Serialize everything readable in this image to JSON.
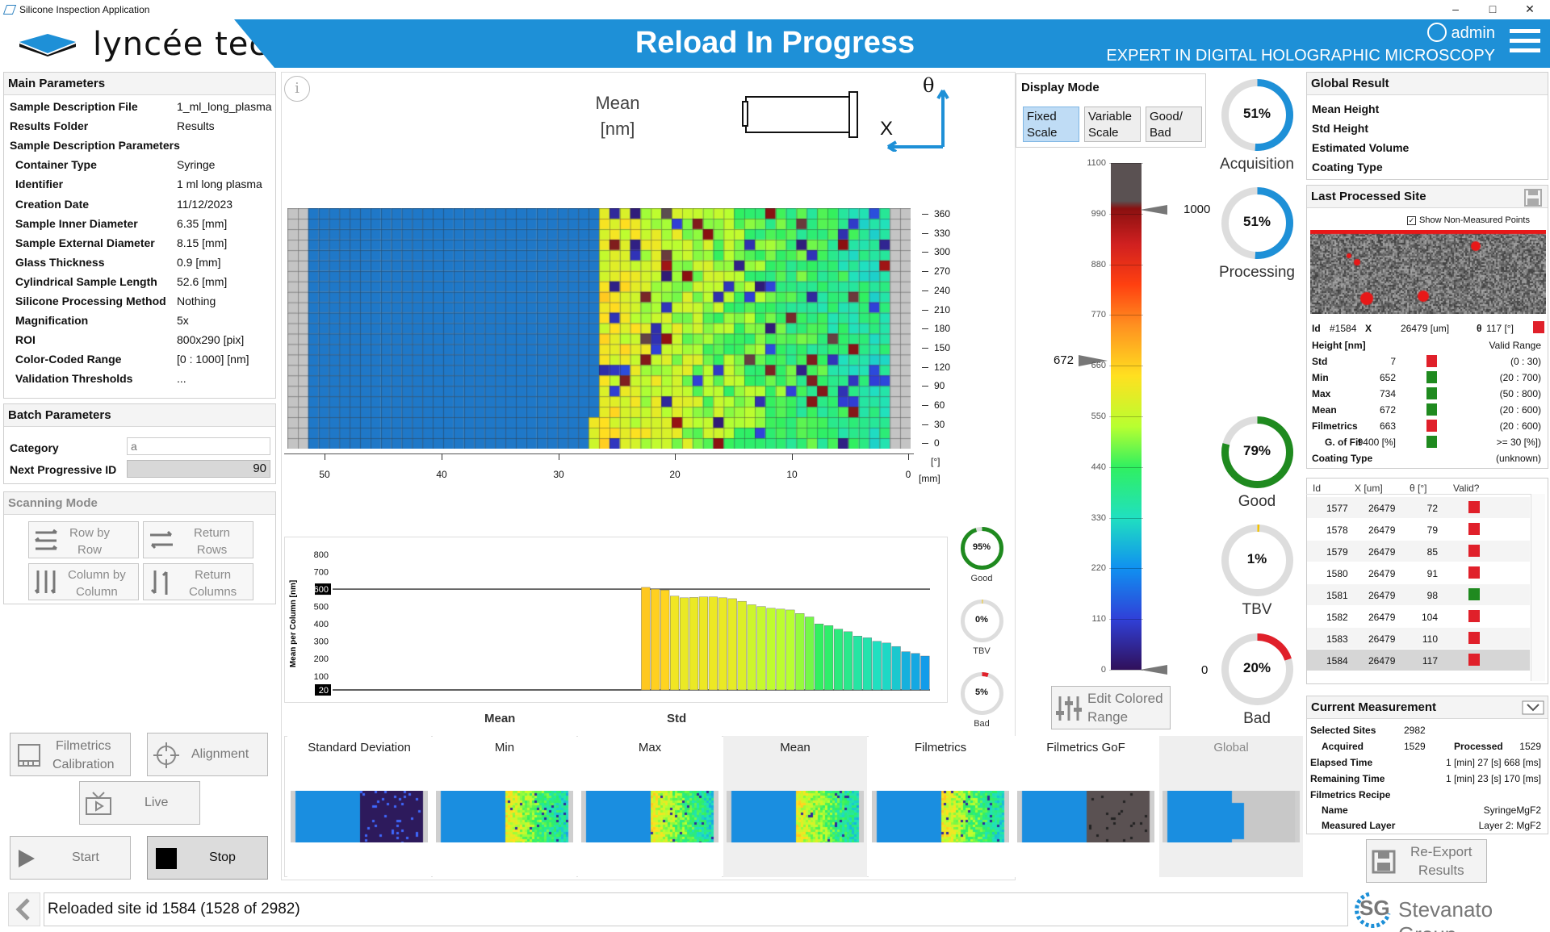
{
  "window": {
    "title": "Silicone Inspection Application",
    "min": "–",
    "max": "□",
    "close": "✕"
  },
  "header": {
    "logo": "lyncée tec",
    "title": "Reload In Progress",
    "subtitle": "EXPERT IN DIGITAL HOLOGRAPHIC MICROSCOPY",
    "user": "admin"
  },
  "main_params": {
    "title": "Main Parameters",
    "rows": [
      {
        "k": "Sample Description File",
        "v": "1_ml_long_plasma",
        "indent": false
      },
      {
        "k": "Results Folder",
        "v": "Results",
        "indent": false
      },
      {
        "k": "Sample Description Parameters",
        "v": "",
        "indent": false
      },
      {
        "k": "Container Type",
        "v": "Syringe",
        "indent": true
      },
      {
        "k": "Identifier",
        "v": "1 ml long plasma",
        "indent": true
      },
      {
        "k": "Creation Date",
        "v": "11/12/2023",
        "indent": true
      },
      {
        "k": "Sample Inner Diameter",
        "v": "6.35 [mm]",
        "indent": true
      },
      {
        "k": "Sample External Diameter",
        "v": "8.15 [mm]",
        "indent": true
      },
      {
        "k": "Glass Thickness",
        "v": "0.9 [mm]",
        "indent": true
      },
      {
        "k": "Cylindrical Sample Length",
        "v": "52.6 [mm]",
        "indent": true
      },
      {
        "k": "Silicone Processing Method",
        "v": "Nothing",
        "indent": true
      },
      {
        "k": "Magnification",
        "v": "5x",
        "indent": true
      },
      {
        "k": "ROI",
        "v": "800x290 [pix]",
        "indent": true
      },
      {
        "k": "Color-Coded Range",
        "v": "[0 : 1000] [nm]",
        "indent": true
      },
      {
        "k": "Validation Thresholds",
        "v": "...",
        "indent": true
      }
    ]
  },
  "batch": {
    "title": "Batch Parameters",
    "category_label": "Category",
    "category_placeholder": "a",
    "next_id_label": "Next Progressive ID",
    "next_id": "90"
  },
  "scanning": {
    "title": "Scanning Mode",
    "row_by_row": "Row by\nRow",
    "return_rows": "Return\nRows",
    "col_by_col": "Column by\nColumn",
    "return_cols": "Return\nColumns"
  },
  "left_buttons": {
    "filmetrics": "Filmetrics\nCalibration",
    "alignment": "Alignment",
    "live": "Live",
    "start": "Start",
    "stop": "Stop"
  },
  "heatmap": {
    "title_line1": "Mean",
    "title_line2": "[nm]",
    "theta": "θ",
    "x": "X",
    "x_ticks": [
      "50",
      "40",
      "30",
      "20",
      "10",
      "0"
    ],
    "x_unit": "[mm]",
    "y_ticks": [
      "360",
      "330",
      "300",
      "270",
      "240",
      "210",
      "180",
      "150",
      "120",
      "90",
      "60",
      "30",
      "0"
    ],
    "y_unit": "[°]"
  },
  "display_mode": {
    "title": "Display Mode",
    "fixed": "Fixed\nScale",
    "variable": "Variable\nScale",
    "goodbad": "Good/\nBad"
  },
  "colorbar": {
    "ticks": [
      "1100",
      "990",
      "880",
      "770",
      "660",
      "550",
      "440",
      "330",
      "220",
      "110",
      "0"
    ],
    "upper": "1000",
    "mean_marker": "672",
    "lower": "0",
    "edit": "Edit Colored\nRange"
  },
  "donuts": [
    {
      "label": "Acquisition",
      "pct": "51%",
      "value": 51,
      "color": "#1e90d7"
    },
    {
      "label": "Processing",
      "pct": "51%",
      "value": 51,
      "color": "#1e90d7"
    },
    {
      "label": "Good",
      "pct": "79%",
      "value": 79,
      "color": "#1f8a1f"
    },
    {
      "label": "TBV",
      "pct": "1%",
      "value": 1,
      "color": "#f2c200"
    },
    {
      "label": "Bad",
      "pct": "20%",
      "value": 20,
      "color": "#e0202a"
    }
  ],
  "small_donuts": [
    {
      "label": "Good",
      "pct": "95%",
      "value": 95,
      "color": "#1f8a1f"
    },
    {
      "label": "TBV",
      "pct": "0%",
      "value": 0,
      "color": "#f2c200"
    },
    {
      "label": "Bad",
      "pct": "5%",
      "value": 5,
      "color": "#e0202a"
    }
  ],
  "bar_tabs": {
    "mean": "Mean",
    "std": "Std"
  },
  "chart_data": {
    "type": "bar",
    "title": "",
    "ylabel": "Mean per Column [nm]",
    "ylim": [
      20,
      800
    ],
    "yticks": [
      "800",
      "700",
      "600",
      "500",
      "400",
      "300",
      "200",
      "100",
      "20"
    ],
    "threshold_upper": 600,
    "threshold_lower": 20,
    "values": [
      0,
      0,
      0,
      0,
      0,
      0,
      0,
      0,
      0,
      0,
      0,
      0,
      0,
      0,
      0,
      0,
      0,
      0,
      0,
      0,
      0,
      0,
      0,
      0,
      0,
      0,
      0,
      0,
      0,
      0,
      0,
      0,
      610,
      600,
      595,
      560,
      550,
      552,
      555,
      555,
      550,
      545,
      530,
      510,
      500,
      490,
      485,
      480,
      460,
      440,
      400,
      390,
      370,
      355,
      330,
      320,
      300,
      290,
      270,
      240,
      230,
      215
    ]
  },
  "thumbs": [
    {
      "label": "Standard Deviation"
    },
    {
      "label": "Min"
    },
    {
      "label": "Max"
    },
    {
      "label": "Mean"
    },
    {
      "label": "Filmetrics"
    },
    {
      "label": "Filmetrics GoF"
    },
    {
      "label": "Global"
    }
  ],
  "global_result": {
    "title": "Global Result",
    "rows": [
      "Mean Height",
      "Std Height",
      "Estimated Volume",
      "Coating Type"
    ]
  },
  "last_site": {
    "title": "Last Processed Site",
    "show_nonmeasured": "Show Non-Measured Points",
    "id_label": "Id",
    "id": "#1584",
    "x_label": "X",
    "x": "26479 [um]",
    "theta_label": "θ",
    "theta": "117 [°]",
    "height_label": "Height [nm]",
    "valid_range": "Valid Range",
    "rows": [
      {
        "k": "Std",
        "v": "7",
        "c": "#e0202a",
        "r": "(0 : 30)"
      },
      {
        "k": "Min",
        "v": "652",
        "c": "#1f8a1f",
        "r": "(20 : 700)"
      },
      {
        "k": "Max",
        "v": "734",
        "c": "#1f8a1f",
        "r": "(50 : 800)"
      },
      {
        "k": "Mean",
        "v": "672",
        "c": "#1f8a1f",
        "r": "(20 : 600)"
      },
      {
        "k": "Filmetrics",
        "v": "663",
        "c": "#e0202a",
        "r": "(20 : 600)"
      },
      {
        "k": "G. of Fit",
        "v": "9400 [%]",
        "c": "#1f8a1f",
        "r": ">= 30 [%])"
      }
    ],
    "coating_label": "Coating Type",
    "coating": "(unknown)"
  },
  "site_table": {
    "headers": [
      "Id",
      "X [um]",
      "θ [°]",
      "Valid?"
    ],
    "rows": [
      {
        "id": "1577",
        "x": "26479",
        "t": "72",
        "c": "#e0202a"
      },
      {
        "id": "1578",
        "x": "26479",
        "t": "79",
        "c": "#e0202a"
      },
      {
        "id": "1579",
        "x": "26479",
        "t": "85",
        "c": "#e0202a"
      },
      {
        "id": "1580",
        "x": "26479",
        "t": "91",
        "c": "#e0202a"
      },
      {
        "id": "1581",
        "x": "26479",
        "t": "98",
        "c": "#1f8a1f"
      },
      {
        "id": "1582",
        "x": "26479",
        "t": "104",
        "c": "#e0202a"
      },
      {
        "id": "1583",
        "x": "26479",
        "t": "110",
        "c": "#e0202a"
      },
      {
        "id": "1584",
        "x": "26479",
        "t": "117",
        "c": "#e0202a"
      }
    ]
  },
  "current": {
    "title": "Current Measurement",
    "selected_label": "Selected Sites",
    "selected": "2982",
    "acquired_label": "Acquired",
    "acquired": "1529",
    "processed_label": "Processed",
    "processed": "1529",
    "elapsed_label": "Elapsed Time",
    "elapsed": "1 [min] 27 [s] 668 [ms]",
    "remaining_label": "Remaining Time",
    "remaining": "1 [min] 23 [s] 170 [ms]",
    "recipe_label": "Filmetrics Recipe",
    "name_label": "Name",
    "name": "SyringeMgF2",
    "layer_label": "Measured Layer",
    "layer": "Layer 2: MgF2"
  },
  "reexport": "Re-Export\nResults",
  "status": {
    "message": "Reloaded site id 1584 (1528 of 2982)",
    "brand": "Stevanato Group",
    "brand_mark": "SG"
  }
}
